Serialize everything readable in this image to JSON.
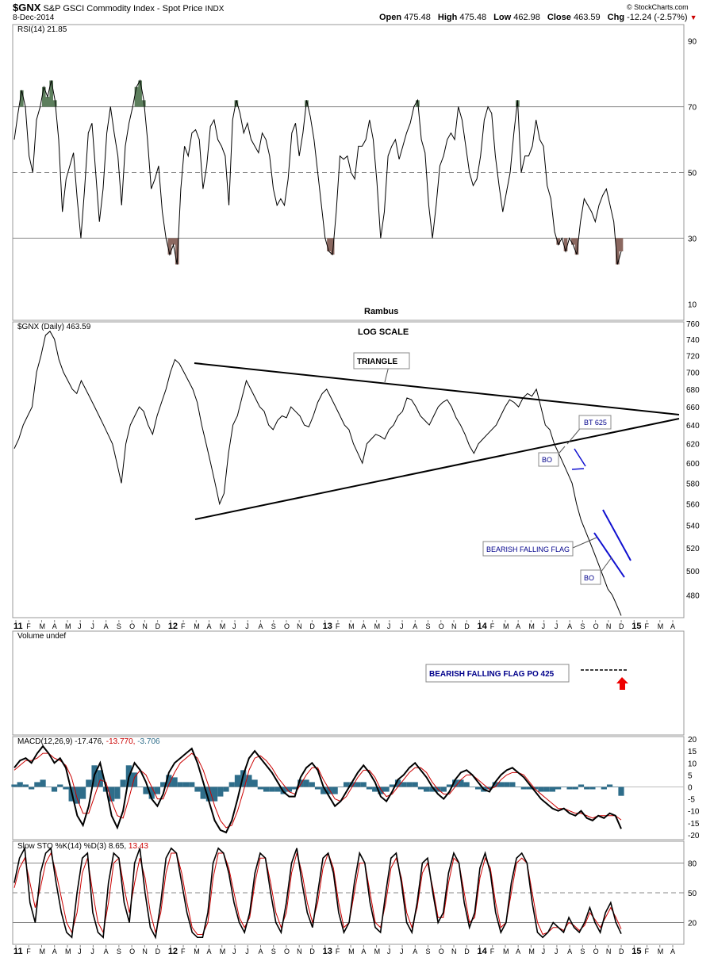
{
  "header": {
    "symbol": "$GNX",
    "name": "S&P GSCI Commodity Index - Spot Price",
    "exchange": "INDX",
    "date": "8-Dec-2014",
    "open_label": "Open",
    "open": "475.48",
    "high_label": "High",
    "high": "475.48",
    "low_label": "Low",
    "low": "462.98",
    "close_label": "Close",
    "close": "463.59",
    "chg_label": "Chg",
    "chg": "-12.24 (-2.57%)",
    "brand": "© StockCharts.com"
  },
  "chart_data": [
    {
      "type": "line",
      "panel": "rsi",
      "title": "RSI(14) 21.85",
      "y_ticks": [
        10,
        30,
        50,
        70,
        90
      ],
      "ylim": [
        5,
        95
      ],
      "reference_lines": [
        30,
        50,
        70
      ],
      "annotation": "Rambus",
      "overbought_fill": "#5d7f5d",
      "oversold_fill": "#8b6860",
      "series": [
        {
          "values": [
            60,
            68,
            75,
            70,
            55,
            50,
            66,
            70,
            76,
            73,
            78,
            72,
            60,
            38,
            48,
            52,
            56,
            42,
            30,
            45,
            62,
            65,
            50,
            35,
            45,
            62,
            70,
            62,
            55,
            40,
            58,
            65,
            70,
            76,
            78,
            72,
            60,
            45,
            48,
            52,
            38,
            30,
            25,
            28,
            22,
            45,
            58,
            55,
            62,
            63,
            60,
            45,
            52,
            64,
            66,
            60,
            58,
            55,
            40,
            66,
            72,
            68,
            62,
            65,
            60,
            58,
            56,
            62,
            60,
            55,
            45,
            40,
            42,
            40,
            48,
            62,
            65,
            55,
            62,
            72,
            67,
            60,
            50,
            40,
            30,
            26,
            25,
            38,
            55,
            54,
            55,
            50,
            48,
            58,
            58,
            60,
            66,
            60,
            47,
            30,
            38,
            55,
            58,
            60,
            54,
            58,
            62,
            65,
            70,
            72,
            60,
            56,
            40,
            30,
            40,
            52,
            55,
            60,
            62,
            60,
            70,
            66,
            58,
            50,
            46,
            48,
            55,
            66,
            70,
            68,
            55,
            46,
            38,
            44,
            50,
            62,
            72,
            50,
            55,
            55,
            58,
            66,
            60,
            58,
            46,
            42,
            32,
            28,
            30,
            26,
            30,
            28,
            25,
            35,
            42,
            40,
            38,
            35,
            40,
            43,
            45,
            40,
            35,
            22,
            26
          ]
        }
      ]
    },
    {
      "type": "line",
      "panel": "price",
      "title": "$GNX (Daily) 463.59",
      "annotation": "LOG SCALE",
      "y_ticks": [
        480,
        500,
        520,
        540,
        560,
        580,
        600,
        620,
        640,
        660,
        680,
        700,
        720,
        740,
        760
      ],
      "ylim": [
        462,
        762
      ],
      "log_scale": true,
      "x_ticks": [
        "11",
        "F",
        "M",
        "A",
        "M",
        "J",
        "J",
        "A",
        "S",
        "O",
        "N",
        "D",
        "12",
        "F",
        "M",
        "A",
        "M",
        "J",
        "J",
        "A",
        "S",
        "O",
        "N",
        "D",
        "13",
        "F",
        "M",
        "A",
        "M",
        "J",
        "J",
        "A",
        "S",
        "O",
        "N",
        "D",
        "14",
        "F",
        "M",
        "A",
        "M",
        "J",
        "J",
        "A",
        "S",
        "O",
        "N",
        "D",
        "15",
        "F",
        "M",
        "A"
      ],
      "series": [
        {
          "values": [
            615,
            625,
            640,
            650,
            660,
            700,
            720,
            745,
            750,
            740,
            715,
            700,
            690,
            680,
            675,
            690,
            680,
            670,
            660,
            650,
            640,
            630,
            620,
            600,
            580,
            620,
            640,
            650,
            660,
            655,
            640,
            630,
            650,
            665,
            680,
            700,
            715,
            710,
            700,
            690,
            680,
            665,
            640,
            620,
            600,
            580,
            560,
            570,
            610,
            640,
            650,
            670,
            690,
            680,
            670,
            660,
            655,
            640,
            635,
            645,
            650,
            648,
            660,
            655,
            650,
            640,
            638,
            650,
            665,
            675,
            680,
            670,
            660,
            650,
            640,
            635,
            620,
            610,
            600,
            620,
            625,
            630,
            628,
            625,
            635,
            640,
            650,
            655,
            670,
            668,
            660,
            650,
            645,
            640,
            650,
            660,
            665,
            668,
            660,
            648,
            640,
            630,
            618,
            610,
            620,
            625,
            630,
            635,
            640,
            650,
            660,
            668,
            665,
            660,
            670,
            675,
            672,
            680,
            660,
            640,
            635,
            620,
            610,
            600,
            590,
            580,
            560,
            545,
            535,
            525,
            515,
            505,
            495,
            485,
            480,
            472,
            463.59
          ]
        }
      ],
      "annotations": [
        "TRIANGLE",
        "BT 625",
        "BO",
        "BEARISH FALLING FLAG",
        "BO"
      ]
    },
    {
      "type": "bar",
      "panel": "volume",
      "title": "Volume undef",
      "annotation": "BEARISH FALLING FLAG PO 425"
    },
    {
      "type": "line",
      "panel": "macd",
      "title_prefix": "MACD(12,26,9)",
      "title_macd": "-17.476,",
      "title_signal": "-13.770,",
      "title_hist": "-3.706",
      "y_ticks": [
        -20,
        -15,
        -10,
        -5,
        0,
        5,
        10,
        15,
        20
      ],
      "ylim": [
        -22,
        21
      ],
      "macd_color": "#000000",
      "signal_color": "#cc0000",
      "hist_color": "#2e6d8a",
      "series": [
        {
          "values": [
            8,
            11,
            12,
            10,
            14,
            17,
            14,
            10,
            12,
            8,
            -2,
            -12,
            -16,
            -8,
            5,
            10,
            0,
            -12,
            -17,
            -10,
            4,
            10,
            7,
            2,
            -5,
            -8,
            -3,
            6,
            10,
            12,
            14,
            16,
            10,
            2,
            -6,
            -14,
            -18,
            -19,
            -14,
            -5,
            5,
            12,
            15,
            12,
            9,
            6,
            2,
            -2,
            -4,
            -4,
            4,
            8,
            10,
            7,
            0,
            -4,
            -8,
            -6,
            -2,
            2,
            6,
            9,
            6,
            2,
            -4,
            -6,
            -2,
            3,
            5,
            8,
            10,
            7,
            4,
            0,
            -3,
            -5,
            -2,
            3,
            6,
            7,
            5,
            2,
            -1,
            -2,
            2,
            5,
            7,
            8,
            6,
            4,
            1,
            -2,
            -5,
            -7,
            -9,
            -10,
            -9,
            -11,
            -12,
            -10,
            -13,
            -14,
            -12,
            -13,
            -11,
            -12,
            -17.476
          ]
        },
        {
          "values": [
            7,
            9,
            11,
            11,
            12,
            14,
            14,
            12,
            11,
            9,
            4,
            -5,
            -11,
            -11,
            -4,
            3,
            2,
            -6,
            -12,
            -13,
            -5,
            4,
            7,
            5,
            0,
            -5,
            -5,
            1,
            6,
            10,
            12,
            14,
            12,
            7,
            0,
            -8,
            -14,
            -17,
            -16,
            -10,
            -2,
            7,
            12,
            13,
            11,
            8,
            4,
            1,
            -2,
            -3,
            1,
            5,
            8,
            8,
            3,
            -1,
            -5,
            -6,
            -4,
            0,
            4,
            7,
            7,
            4,
            -1,
            -4,
            -3,
            0,
            3,
            6,
            8,
            8,
            6,
            2,
            -1,
            -3,
            -3,
            0,
            3,
            5,
            5,
            3,
            1,
            -1,
            0,
            3,
            5,
            6,
            6,
            5,
            2,
            -1,
            -3,
            -5,
            -7,
            -9,
            -9,
            -10,
            -11,
            -11,
            -12,
            -13,
            -12,
            -12,
            -12,
            -12,
            -13.77
          ]
        },
        {
          "values": [
            1,
            2,
            1,
            -1,
            2,
            3,
            0,
            -2,
            1,
            -1,
            -6,
            -7,
            -5,
            3,
            9,
            7,
            -2,
            -6,
            -5,
            3,
            9,
            6,
            0,
            -3,
            -5,
            -3,
            2,
            5,
            4,
            2,
            2,
            2,
            -2,
            -5,
            -6,
            -6,
            -4,
            -2,
            2,
            5,
            7,
            5,
            3,
            -1,
            -2,
            -2,
            -2,
            -3,
            -2,
            -1,
            3,
            3,
            2,
            -1,
            -3,
            -3,
            -3,
            0,
            2,
            2,
            2,
            2,
            -1,
            -2,
            -3,
            -2,
            1,
            3,
            2,
            2,
            2,
            -1,
            -2,
            -2,
            -2,
            -2,
            1,
            3,
            3,
            2,
            0,
            -1,
            -2,
            -1,
            2,
            2,
            2,
            2,
            0,
            -1,
            -1,
            -1,
            -2,
            -2,
            -2,
            -1,
            0,
            -1,
            -1,
            1,
            -1,
            -1,
            0,
            -1,
            1,
            0,
            -3.706
          ]
        }
      ]
    },
    {
      "type": "line",
      "panel": "stochastic",
      "title_prefix": "Slow STO %K(14) %D(3)",
      "title_k": "8.65,",
      "title_d": "13.43",
      "y_ticks": [
        20,
        50,
        80
      ],
      "ylim": [
        -2,
        102
      ],
      "reference_lines": [
        20,
        50,
        80
      ],
      "k_color": "#000000",
      "d_color": "#cc0000",
      "series": [
        {
          "values": [
            60,
            85,
            95,
            40,
            20,
            70,
            90,
            95,
            60,
            30,
            10,
            5,
            50,
            85,
            90,
            30,
            10,
            5,
            60,
            90,
            85,
            40,
            20,
            80,
            95,
            50,
            15,
            5,
            40,
            85,
            95,
            90,
            60,
            30,
            10,
            5,
            5,
            30,
            80,
            95,
            90,
            70,
            40,
            20,
            10,
            30,
            70,
            90,
            85,
            50,
            20,
            10,
            40,
            80,
            95,
            60,
            30,
            15,
            50,
            85,
            90,
            70,
            30,
            10,
            20,
            60,
            90,
            80,
            40,
            15,
            10,
            50,
            85,
            90,
            60,
            20,
            10,
            40,
            80,
            85,
            50,
            20,
            30,
            70,
            90,
            80,
            40,
            15,
            30,
            75,
            90,
            70,
            30,
            10,
            20,
            60,
            85,
            90,
            80,
            40,
            10,
            5,
            10,
            20,
            15,
            10,
            25,
            15,
            10,
            20,
            35,
            20,
            10,
            30,
            40,
            20,
            8.65
          ]
        },
        {
          "values": [
            55,
            75,
            85,
            60,
            35,
            55,
            80,
            90,
            70,
            45,
            20,
            10,
            30,
            70,
            85,
            50,
            20,
            10,
            40,
            80,
            85,
            55,
            30,
            60,
            85,
            65,
            30,
            10,
            30,
            70,
            90,
            90,
            70,
            40,
            15,
            8,
            8,
            20,
            65,
            90,
            90,
            75,
            50,
            25,
            15,
            25,
            60,
            85,
            85,
            60,
            30,
            15,
            30,
            70,
            90,
            70,
            40,
            20,
            40,
            75,
            90,
            75,
            40,
            15,
            20,
            50,
            80,
            80,
            50,
            20,
            15,
            40,
            75,
            85,
            65,
            30,
            15,
            35,
            70,
            80,
            55,
            25,
            25,
            60,
            85,
            80,
            50,
            20,
            25,
            65,
            85,
            75,
            40,
            15,
            20,
            50,
            80,
            85,
            80,
            50,
            20,
            8,
            10,
            15,
            15,
            12,
            20,
            17,
            12,
            17,
            30,
            23,
            15,
            25,
            35,
            25,
            13.43
          ]
        }
      ]
    }
  ]
}
